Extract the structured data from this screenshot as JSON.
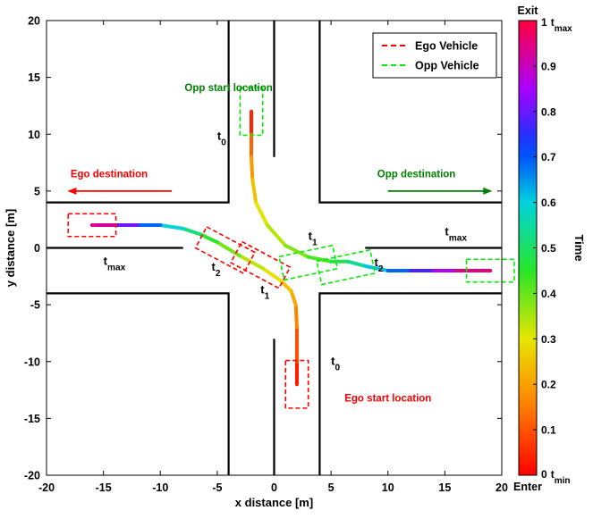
{
  "chart_data": {
    "type": "line",
    "xlabel": "x distance [m]",
    "ylabel": "y distance [m]",
    "xlim": [
      -20,
      20
    ],
    "ylim": [
      -20,
      20
    ],
    "x_ticks": [
      -20,
      -15,
      -10,
      -5,
      0,
      5,
      10,
      15,
      20
    ],
    "y_ticks": [
      20,
      15,
      10,
      5,
      0,
      -5,
      -10,
      -15,
      -20
    ],
    "grid": false,
    "legend_position": "top-right",
    "legend": [
      {
        "name": "Ego Vehicle",
        "color": "#ff0000",
        "style": "dashed"
      },
      {
        "name": "Opp Vehicle",
        "color": "#00ee00",
        "style": "dashed"
      }
    ],
    "road_edges": [
      [
        [
          -20,
          4
        ],
        [
          -4,
          4
        ],
        [
          -4,
          20
        ]
      ],
      [
        [
          4,
          20
        ],
        [
          4,
          4
        ],
        [
          20,
          4
        ]
      ],
      [
        [
          -20,
          -4
        ],
        [
          -4,
          -4
        ],
        [
          -4,
          -20
        ]
      ],
      [
        [
          4,
          -20
        ],
        [
          4,
          -4
        ],
        [
          20,
          -4
        ]
      ]
    ],
    "center_lines": [
      [
        [
          -20,
          0
        ],
        [
          -8,
          0
        ]
      ],
      [
        [
          8,
          0
        ],
        [
          20,
          0
        ]
      ],
      [
        [
          0,
          20
        ],
        [
          0,
          8
        ]
      ],
      [
        [
          0,
          -8
        ],
        [
          0,
          -20
        ]
      ]
    ],
    "series": [
      {
        "name": "Ego Vehicle",
        "points": [
          [
            2,
            -12
          ],
          [
            2,
            -10
          ],
          [
            2,
            -7
          ],
          [
            1.9,
            -5
          ],
          [
            1.5,
            -3.8
          ],
          [
            0.6,
            -2.9
          ],
          [
            -1,
            -1.8
          ],
          [
            -3,
            -0.7
          ],
          [
            -5,
            0.5
          ],
          [
            -6.5,
            1.2
          ],
          [
            -8,
            1.7
          ],
          [
            -10,
            2
          ],
          [
            -12,
            2
          ],
          [
            -14,
            2
          ],
          [
            -16,
            2
          ]
        ],
        "t": [
          0,
          0.06,
          0.13,
          0.19,
          0.23,
          0.27,
          0.31,
          0.36,
          0.42,
          0.48,
          0.55,
          0.64,
          0.74,
          0.86,
          1.0
        ]
      },
      {
        "name": "Opp Vehicle",
        "points": [
          [
            -2,
            12
          ],
          [
            -2,
            10
          ],
          [
            -2,
            8
          ],
          [
            -1.9,
            6
          ],
          [
            -1.6,
            4
          ],
          [
            -0.6,
            2
          ],
          [
            1,
            0.2
          ],
          [
            3,
            -0.8
          ],
          [
            5,
            -1.2
          ],
          [
            6.5,
            -1.2
          ],
          [
            8,
            -1.6
          ],
          [
            10,
            -2
          ],
          [
            12,
            -2
          ],
          [
            14,
            -2
          ],
          [
            16,
            -2
          ],
          [
            19,
            -2
          ]
        ],
        "t": [
          0,
          0.08,
          0.16,
          0.22,
          0.27,
          0.32,
          0.36,
          0.4,
          0.45,
          0.5,
          0.57,
          0.65,
          0.73,
          0.82,
          0.9,
          1.0
        ]
      }
    ],
    "vehicle_boxes": [
      {
        "vehicle": "Ego",
        "center": [
          2,
          -12
        ],
        "angle": 0
      },
      {
        "vehicle": "Ego",
        "center": [
          -16,
          2
        ],
        "angle": 0
      },
      {
        "vehicle": "Ego",
        "center": [
          -4.3,
          -0.2
        ],
        "angle": 28
      },
      {
        "vehicle": "Ego",
        "center": [
          -1.2,
          -1.5
        ],
        "angle": 28
      },
      {
        "vehicle": "Opp",
        "center": [
          -2,
          12
        ],
        "angle": 0
      },
      {
        "vehicle": "Opp",
        "center": [
          19,
          -2
        ],
        "angle": 0
      },
      {
        "vehicle": "Opp",
        "center": [
          3,
          -1.3
        ],
        "angle": -12
      },
      {
        "vehicle": "Opp",
        "center": [
          6.3,
          -1.7
        ],
        "angle": -12
      }
    ],
    "time_labels": [
      {
        "base": "t",
        "sub": "0",
        "pos": [
          -5,
          9.5
        ]
      },
      {
        "base": "t",
        "sub": "max",
        "pos": [
          -15,
          -1.5
        ]
      },
      {
        "base": "t",
        "sub": "2",
        "pos": [
          -5.5,
          -2
        ]
      },
      {
        "base": "t",
        "sub": "1",
        "pos": [
          -1.2,
          -4
        ]
      },
      {
        "base": "t",
        "sub": "1",
        "pos": [
          3,
          0.7
        ]
      },
      {
        "base": "t",
        "sub": "2",
        "pos": [
          8.8,
          -1.6
        ]
      },
      {
        "base": "t",
        "sub": "max",
        "pos": [
          15,
          1.1
        ]
      },
      {
        "base": "t",
        "sub": "0",
        "pos": [
          5,
          -10.3
        ]
      }
    ],
    "annotations": [
      {
        "text": "Opp start location",
        "color": "#008000",
        "pos": [
          -4,
          13.8
        ],
        "anchor": "middle"
      },
      {
        "text": "Ego destination",
        "color": "#ff0000",
        "pos": [
          -14.5,
          6.2
        ],
        "anchor": "middle"
      },
      {
        "text": "Opp destination",
        "color": "#008000",
        "pos": [
          12.5,
          6.2
        ],
        "anchor": "middle"
      },
      {
        "text": "Ego start location",
        "color": "#ff0000",
        "pos": [
          10,
          -13.5
        ],
        "anchor": "middle"
      }
    ],
    "arrows": [
      {
        "color": "#ff0000",
        "from": [
          -9,
          5
        ],
        "to": [
          -18,
          5
        ]
      },
      {
        "color": "#008000",
        "from": [
          10,
          5
        ],
        "to": [
          19,
          5
        ]
      }
    ],
    "colorbar": {
      "label": "Time",
      "top_label": "Exit",
      "bottom_label": "Enter",
      "ticks": [
        0,
        0.1,
        0.2,
        0.3,
        0.4,
        0.5,
        0.6,
        0.7,
        0.8,
        0.9,
        1
      ],
      "top_tick": {
        "value": "1",
        "base": "t",
        "sub": "max"
      },
      "bottom_tick": {
        "value": "0",
        "base": "t",
        "sub": "min"
      }
    }
  }
}
